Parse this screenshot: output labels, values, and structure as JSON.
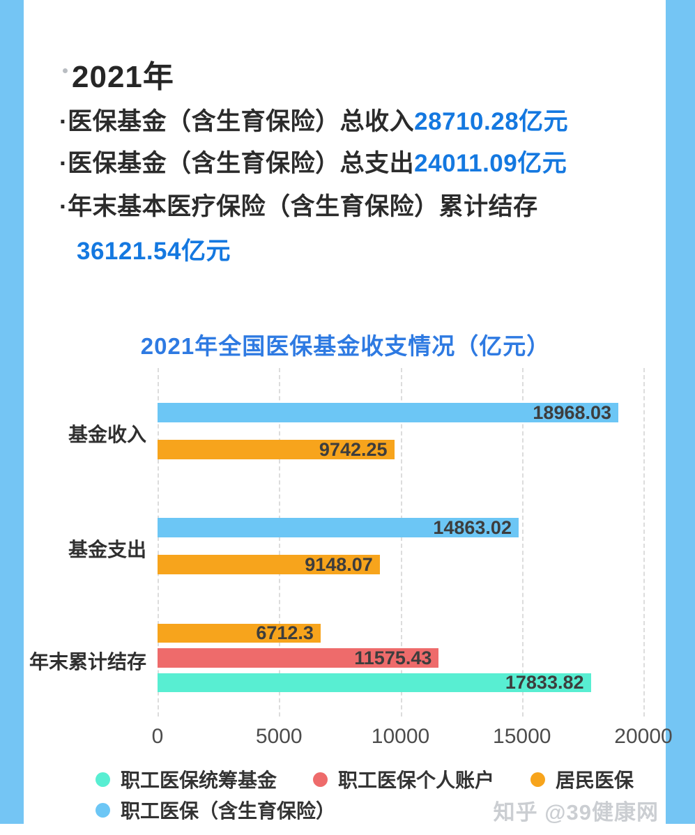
{
  "frame": {
    "color": "#74c5f4"
  },
  "watermark": {
    "text": "知乎 @39健康网"
  },
  "summary": {
    "heading": "2021年",
    "bullet": "·",
    "text_color": "#2b2b2b",
    "value_color": "#1478e0",
    "lines": [
      {
        "label": "医保基金（含生育保险）总收入",
        "value": "28710.28亿元"
      },
      {
        "label": "医保基金（含生育保险）总支出",
        "value": "24011.09亿元"
      },
      {
        "label": "年末基本医疗保险（含生育保险）累计结存",
        "value": ""
      }
    ],
    "carryover_value": "36121.54亿元"
  },
  "chart_data": {
    "type": "bar",
    "orientation": "horizontal",
    "title": "2021年全国医保基金收支情况（亿元）",
    "title_color": "#2e7ae2",
    "categories": [
      "基金收入",
      "基金支出",
      "年末累计结存"
    ],
    "series": [
      {
        "name": "职工医保（含生育保险）",
        "color": "#6cc6f5",
        "values": [
          18968.03,
          14863.02,
          null
        ]
      },
      {
        "name": "居民医保",
        "color": "#f7a41c",
        "values": [
          9742.25,
          9148.07,
          6712.3
        ]
      },
      {
        "name": "职工医保个人账户",
        "color": "#ee6b6b",
        "values": [
          null,
          null,
          11575.43
        ]
      },
      {
        "name": "职工医保统筹基金",
        "color": "#58eed2",
        "values": [
          null,
          null,
          17833.82
        ]
      }
    ],
    "xlabel": "",
    "ylabel": "",
    "xlim": [
      0,
      20000
    ],
    "x_ticks": [
      "0",
      "5000",
      "10000",
      "15000",
      "20000"
    ],
    "grid": "dashed-vertical",
    "legend_position": "bottom",
    "legend": [
      {
        "name": "职工医保统筹基金",
        "color": "#58eed2"
      },
      {
        "name": "职工医保个人账户",
        "color": "#ee6b6b"
      },
      {
        "name": "居民医保",
        "color": "#f7a41c"
      },
      {
        "name": "职工医保（含生育保险）",
        "color": "#6cc6f5"
      }
    ]
  }
}
